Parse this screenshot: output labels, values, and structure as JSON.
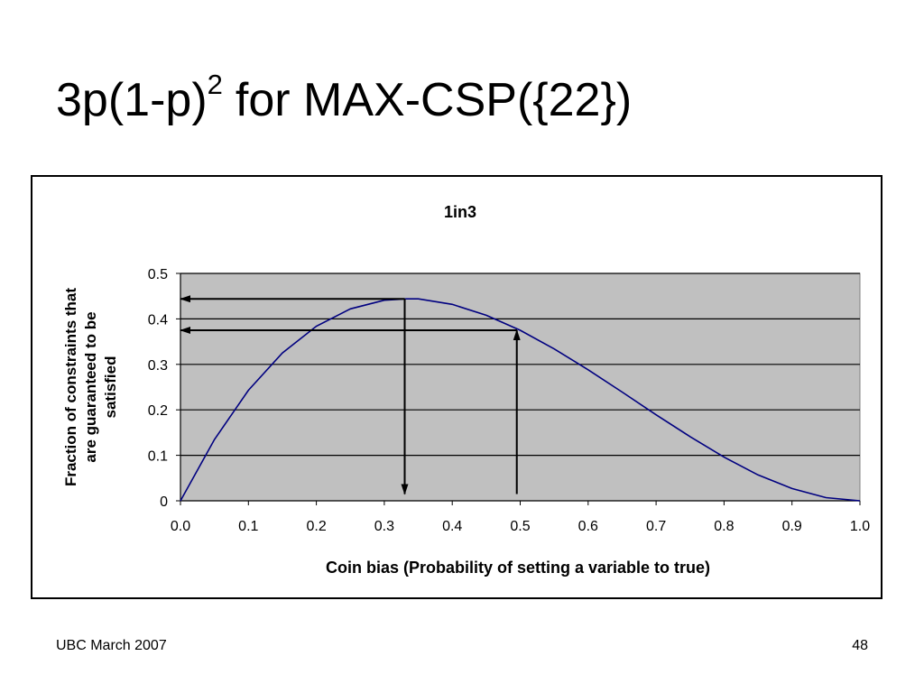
{
  "slide": {
    "title_main": "3p(1-p)",
    "title_sup": "2",
    "title_rest": "for MAX-CSP({22})",
    "footer_left": "UBC March 2007",
    "page_number": "48"
  },
  "chart_data": {
    "type": "line",
    "title": "1in3",
    "xlabel": "Coin bias (Probability of setting a variable to true)",
    "ylabel": [
      "Fraction of constraints that",
      "are guaranteed to be",
      "satisfied"
    ],
    "xlim": [
      0,
      1
    ],
    "ylim": [
      0,
      0.5
    ],
    "x_ticks": [
      "0.0",
      "0.1",
      "0.2",
      "0.3",
      "0.4",
      "0.5",
      "0.6",
      "0.7",
      "0.8",
      "0.9",
      "1.0"
    ],
    "y_ticks": [
      "0",
      "0.1",
      "0.2",
      "0.3",
      "0.4",
      "0.5"
    ],
    "grid": "horizontal",
    "plot_background": "#c0c0c0",
    "series": [
      {
        "color": "#000080",
        "x": [
          0,
          0.05,
          0.1,
          0.15,
          0.2,
          0.25,
          0.3,
          0.333,
          0.35,
          0.4,
          0.45,
          0.5,
          0.55,
          0.6,
          0.65,
          0.7,
          0.75,
          0.8,
          0.85,
          0.9,
          0.95,
          1.0
        ],
        "y": [
          0,
          0.135,
          0.243,
          0.325,
          0.384,
          0.422,
          0.441,
          0.444,
          0.444,
          0.432,
          0.408,
          0.375,
          0.334,
          0.288,
          0.239,
          0.189,
          0.141,
          0.096,
          0.057,
          0.027,
          0.007,
          0
        ]
      }
    ],
    "annotations": [
      {
        "type": "arrow",
        "from": [
          0.33,
          0.444
        ],
        "to": [
          0,
          0.444
        ]
      },
      {
        "type": "arrow",
        "from": [
          0.33,
          0.444
        ],
        "to": [
          0.33,
          0.015
        ]
      },
      {
        "type": "arrow",
        "from": [
          0.495,
          0.375
        ],
        "to": [
          0,
          0.375
        ]
      },
      {
        "type": "arrow",
        "from": [
          0.495,
          0.015
        ],
        "to": [
          0.495,
          0.375
        ]
      }
    ]
  }
}
